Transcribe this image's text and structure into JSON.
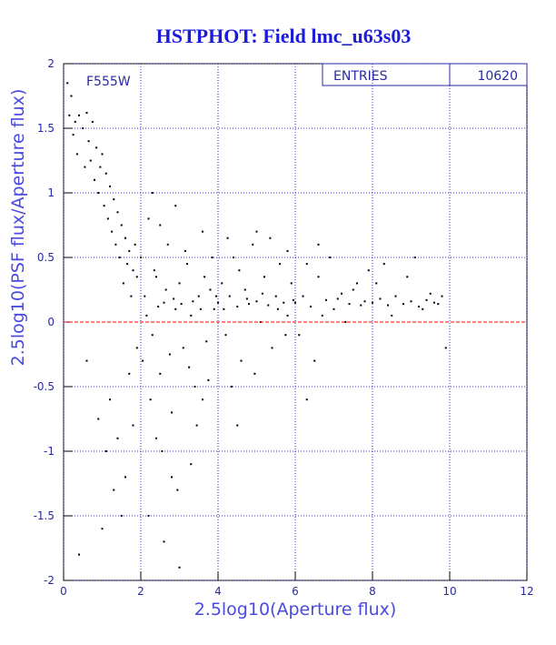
{
  "chart_data": {
    "type": "scatter",
    "title": "HSTPHOT: Field lmc_u63s03",
    "xlabel": "2.5log10(Aperture flux)",
    "ylabel": "2.5log10(PSF flux/Aperture flux)",
    "legend_label": "F555W",
    "stats": {
      "label": "ENTRIES",
      "value": 10620
    },
    "xlim": [
      0,
      12
    ],
    "ylim": [
      -2,
      2
    ],
    "xticks": [
      0,
      2,
      4,
      6,
      8,
      10,
      12
    ],
    "yticks": [
      -2,
      -1.5,
      -1,
      -0.5,
      0,
      0.5,
      1,
      1.5,
      2
    ],
    "grid": true,
    "color": "#000000",
    "hline": 0,
    "hline_color": "#ff0000",
    "x": [
      0.1,
      0.15,
      0.2,
      0.25,
      0.3,
      0.35,
      0.4,
      0.5,
      0.55,
      0.6,
      0.65,
      0.7,
      0.75,
      0.8,
      0.85,
      0.9,
      0.95,
      1.0,
      1.05,
      1.1,
      1.15,
      1.2,
      1.25,
      1.3,
      1.35,
      1.4,
      1.45,
      1.5,
      1.55,
      1.6,
      1.65,
      1.7,
      1.75,
      1.8,
      1.85,
      1.9,
      0.9,
      1.1,
      1.2,
      1.3,
      1.4,
      1.5,
      1.6,
      1.7,
      1.8,
      1.9,
      0.4,
      1.0,
      0.6,
      2.0,
      2.1,
      2.2,
      2.3,
      2.4,
      2.5,
      2.6,
      2.7,
      2.8,
      2.9,
      3.0,
      3.1,
      3.2,
      3.3,
      3.4,
      3.5,
      3.6,
      3.7,
      3.8,
      3.9,
      2.05,
      2.15,
      2.25,
      2.35,
      2.45,
      2.55,
      2.65,
      2.75,
      2.85,
      2.95,
      3.05,
      3.15,
      3.25,
      3.35,
      3.45,
      3.55,
      3.65,
      3.75,
      3.85,
      3.95,
      2.2,
      2.6,
      3.0,
      2.8,
      3.3,
      2.4,
      3.6,
      2.9,
      2.3,
      2.5,
      4.0,
      4.1,
      4.2,
      4.3,
      4.4,
      4.5,
      4.6,
      4.7,
      4.8,
      4.9,
      5.0,
      5.1,
      5.2,
      5.3,
      5.4,
      5.5,
      5.6,
      5.7,
      5.8,
      5.9,
      4.15,
      4.35,
      4.55,
      4.75,
      4.95,
      5.15,
      5.35,
      5.55,
      5.75,
      5.95,
      4.5,
      5.0,
      5.8,
      4.25,
      6.0,
      6.2,
      6.4,
      6.6,
      6.8,
      7.0,
      7.2,
      7.4,
      7.6,
      7.8,
      6.1,
      6.3,
      6.5,
      6.7,
      6.9,
      7.1,
      7.3,
      7.5,
      7.7,
      7.9,
      6.3,
      6.6,
      8.0,
      8.2,
      8.4,
      8.6,
      8.8,
      9.0,
      9.2,
      9.4,
      9.6,
      8.1,
      8.5,
      8.9,
      9.1,
      9.3,
      9.5,
      9.7,
      9.9,
      8.3,
      9.8
    ],
    "values": [
      1.85,
      1.6,
      1.75,
      1.45,
      1.55,
      1.3,
      1.6,
      1.5,
      1.2,
      1.62,
      1.4,
      1.25,
      1.55,
      1.1,
      1.35,
      1.0,
      1.2,
      1.3,
      0.9,
      1.15,
      0.8,
      1.05,
      0.7,
      0.95,
      0.6,
      0.85,
      0.5,
      0.75,
      0.3,
      0.65,
      0.45,
      0.55,
      0.2,
      0.4,
      0.6,
      0.35,
      -0.75,
      -1.0,
      -0.6,
      -1.3,
      -0.9,
      -1.5,
      -1.2,
      -0.4,
      -0.8,
      -0.2,
      -1.8,
      -1.6,
      -0.3,
      0.5,
      0.2,
      0.8,
      -0.1,
      0.35,
      -0.4,
      0.15,
      0.6,
      -0.7,
      0.1,
      0.3,
      -0.2,
      0.45,
      0.05,
      -0.5,
      0.2,
      0.7,
      -0.15,
      0.25,
      0.1,
      -0.3,
      0.05,
      -0.6,
      0.4,
      0.12,
      -1.0,
      0.25,
      -0.25,
      0.18,
      -1.3,
      0.14,
      0.55,
      -0.35,
      0.16,
      -0.8,
      0.1,
      0.35,
      -0.45,
      0.5,
      0.2,
      -1.5,
      -1.7,
      -1.9,
      -1.2,
      -1.1,
      -0.9,
      -0.6,
      0.9,
      1.0,
      0.75,
      0.15,
      0.3,
      -0.1,
      0.2,
      0.5,
      0.12,
      -0.3,
      0.25,
      0.14,
      0.6,
      0.16,
      0.0,
      0.35,
      0.13,
      -0.2,
      0.2,
      0.45,
      0.15,
      0.05,
      0.3,
      0.1,
      -0.5,
      0.4,
      0.18,
      -0.4,
      0.22,
      0.65,
      0.1,
      -0.1,
      0.17,
      -0.8,
      0.7,
      0.55,
      0.65,
      0.15,
      0.2,
      0.12,
      0.35,
      0.17,
      0.1,
      0.22,
      0.14,
      0.3,
      0.16,
      -0.1,
      0.45,
      -0.3,
      0.05,
      0.5,
      0.18,
      0.0,
      0.25,
      0.13,
      0.4,
      -0.6,
      0.6,
      0.15,
      0.18,
      0.13,
      0.2,
      0.14,
      0.16,
      0.12,
      0.17,
      0.15,
      0.3,
      0.05,
      0.35,
      0.5,
      0.1,
      0.22,
      0.14,
      -0.2,
      0.45,
      0.2
    ]
  }
}
